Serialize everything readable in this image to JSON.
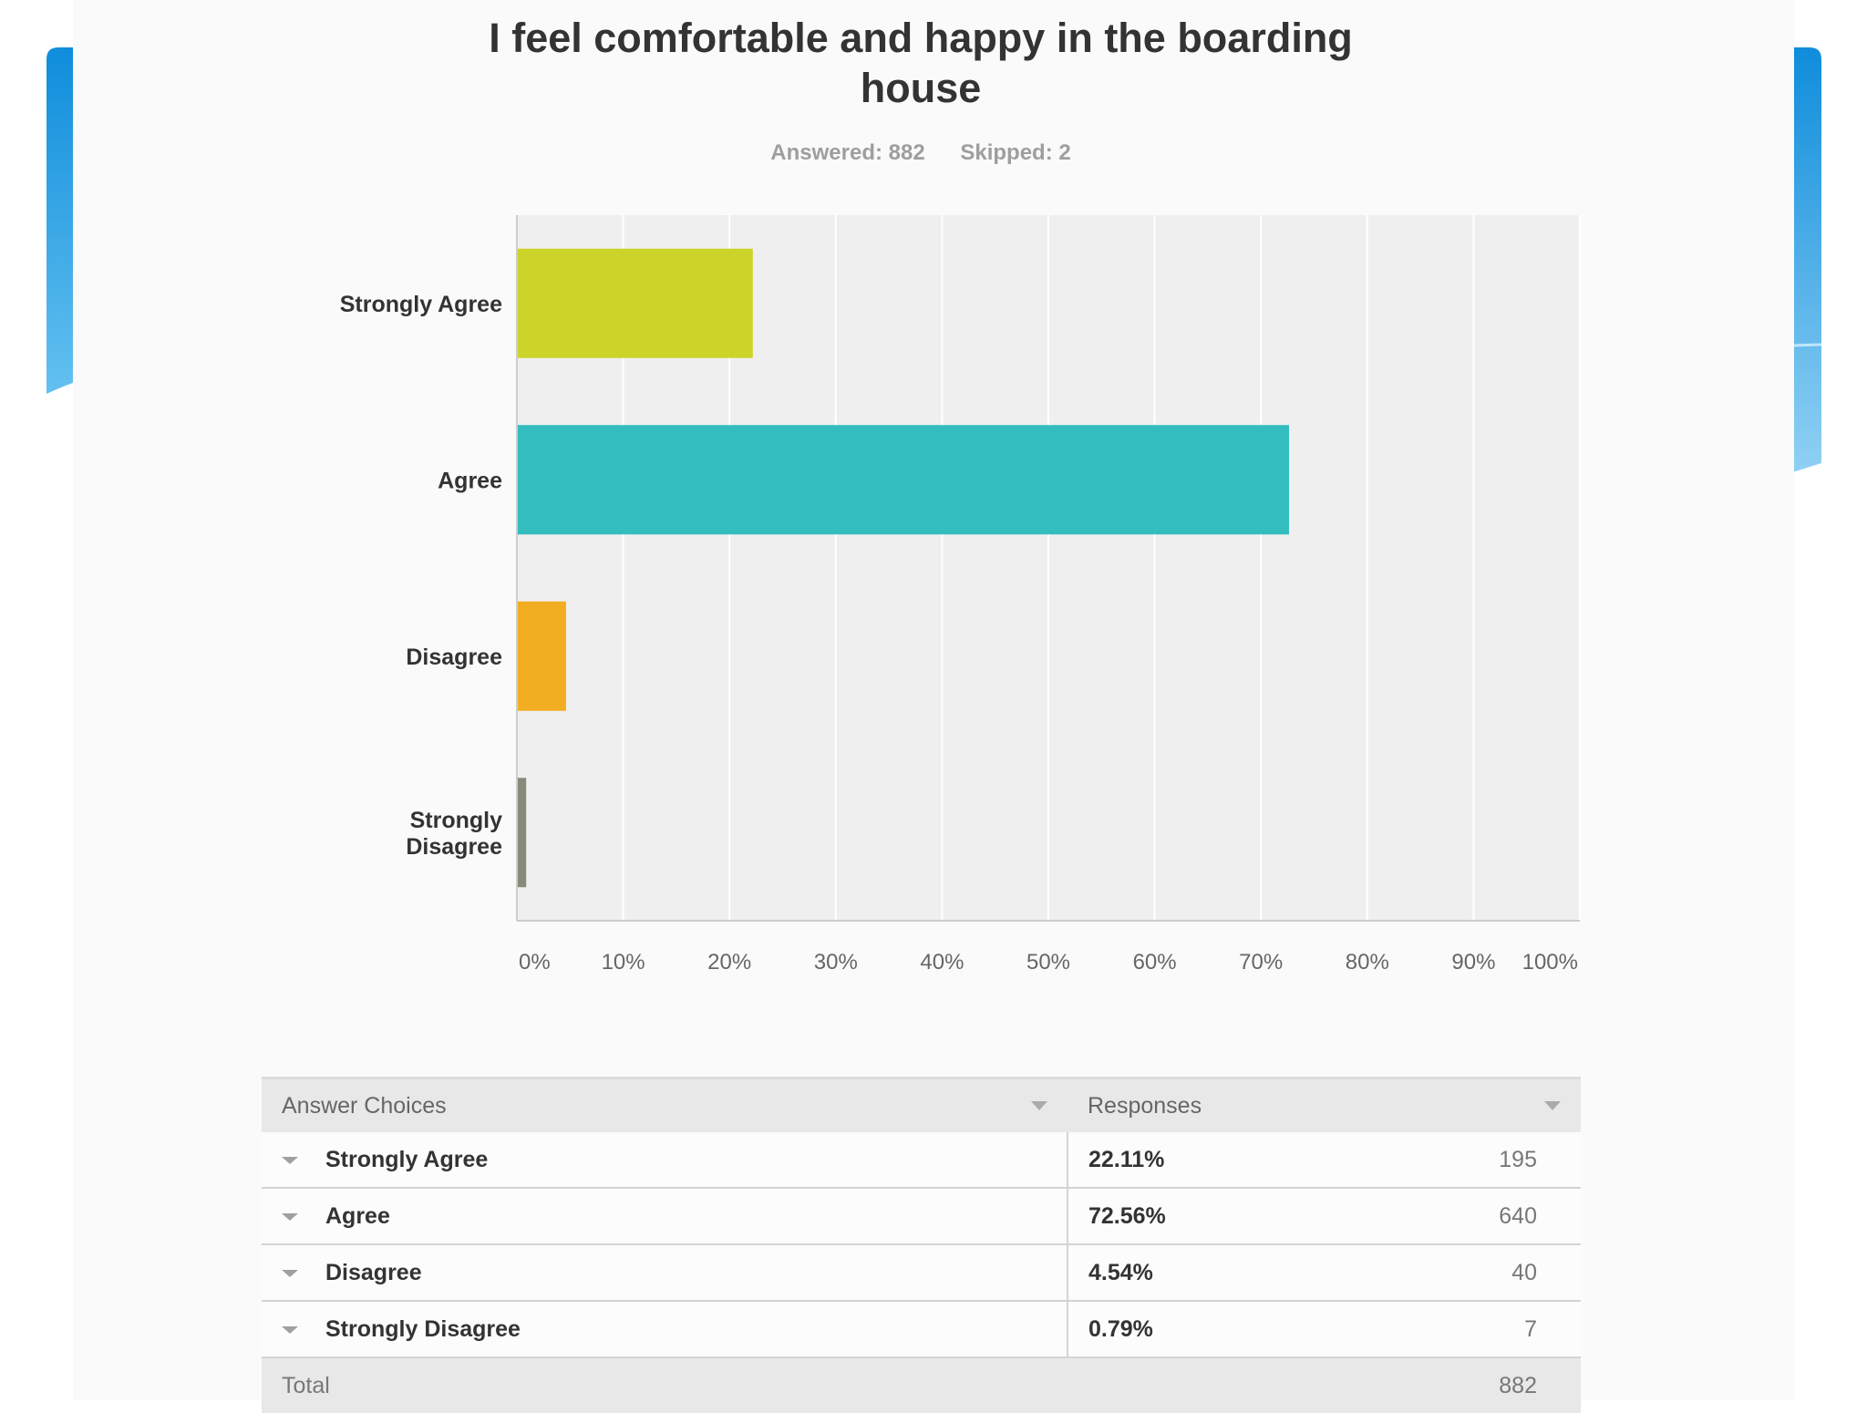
{
  "colors": {
    "bar_strongly_agree": "#ccd42a",
    "bar_agree": "#33bdbf",
    "bar_disagree": "#f2ae22",
    "bar_strongly_disagree": "#8a8a7a",
    "plot_bg": "#f0eff0",
    "deco_blue": "#1a9be0"
  },
  "chart_data": {
    "type": "bar",
    "orientation": "horizontal",
    "title": "I feel comfortable and happy in the boarding house",
    "answered_label": "Answered: 882",
    "skipped_label": "Skipped: 2",
    "categories": [
      "Strongly Agree",
      "Agree",
      "Disagree",
      "Strongly Disagree"
    ],
    "category_lines": [
      [
        "Strongly Agree"
      ],
      [
        "Agree"
      ],
      [
        "Disagree"
      ],
      [
        "Strongly",
        "Disagree"
      ]
    ],
    "values": [
      22.11,
      72.56,
      4.54,
      0.79
    ],
    "xlim": [
      0,
      100
    ],
    "xticks": [
      "0%",
      "10%",
      "20%",
      "30%",
      "40%",
      "50%",
      "60%",
      "70%",
      "80%",
      "90%",
      "100%"
    ],
    "grid": true,
    "xlabel": "",
    "ylabel": ""
  },
  "table": {
    "header_choices": "Answer Choices",
    "header_responses": "Responses",
    "rows": [
      {
        "choice": "Strongly Agree",
        "percent": "22.11%",
        "count": "195"
      },
      {
        "choice": "Agree",
        "percent": "72.56%",
        "count": "640"
      },
      {
        "choice": "Disagree",
        "percent": "4.54%",
        "count": "40"
      },
      {
        "choice": "Strongly Disagree",
        "percent": "0.79%",
        "count": "7"
      }
    ],
    "total_label": "Total",
    "total_count": "882"
  }
}
